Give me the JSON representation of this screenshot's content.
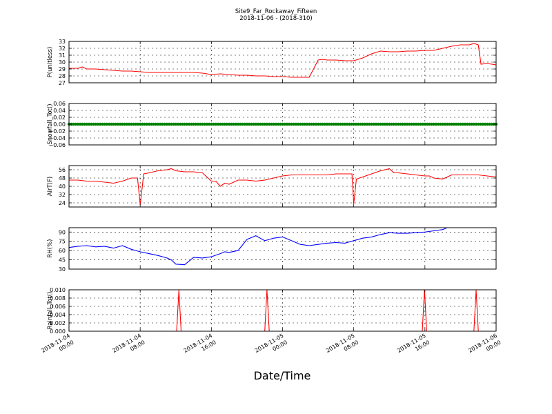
{
  "figure": {
    "title_line1": "Site9_Far_Rockaway_Fifteen",
    "title_line2": "2018-11-06 - (2018-310)",
    "xlabel": "Date/Time",
    "x_range": [
      "2018-11-04 00:00",
      "2018-11-06 00:00"
    ],
    "x_ticks": [
      {
        "value": "2018-11-04 00:00",
        "line1": "2018-11-04",
        "line2": "00:00"
      },
      {
        "value": "2018-11-04 08:00",
        "line1": "2018-11-04",
        "line2": "08:00"
      },
      {
        "value": "2018-11-04 16:00",
        "line1": "2018-11-04",
        "line2": "16:00"
      },
      {
        "value": "2018-11-05 00:00",
        "line1": "2018-11-05",
        "line2": "00:00"
      },
      {
        "value": "2018-11-05 08:00",
        "line1": "2018-11-05",
        "line2": "08:00"
      },
      {
        "value": "2018-11-05 16:00",
        "line1": "2018-11-05",
        "line2": "16:00"
      },
      {
        "value": "2018-11-06 00:00",
        "line1": "2018-11-06",
        "line2": "00:00"
      }
    ],
    "colors": {
      "red": "#ff0000",
      "green": "#008000",
      "blue": "#0000ff",
      "grid": "#000000"
    }
  },
  "chart_data": [
    {
      "type": "line",
      "ylabel": "P(unitless)",
      "ylim": [
        27,
        33
      ],
      "yticks": [
        27,
        28,
        29,
        30,
        31,
        32,
        33
      ],
      "ytick_labels": [
        "27",
        "28",
        "29",
        "30",
        "31",
        "32",
        "33"
      ],
      "color": "red",
      "grid": true,
      "series": [
        {
          "x_hours": [
            0,
            1,
            1.5,
            2,
            3,
            4,
            5,
            6,
            7,
            8,
            9,
            10,
            11,
            12,
            13,
            14,
            15,
            16,
            17,
            18,
            19,
            20,
            21,
            22,
            23,
            24,
            25,
            26,
            27,
            28,
            28.5,
            29,
            30,
            31,
            32,
            33,
            34,
            35,
            36,
            37,
            38,
            39,
            40,
            41,
            42,
            43,
            44,
            45,
            45.5,
            46,
            46.3,
            47,
            48
          ],
          "values": [
            29.1,
            29.1,
            29.3,
            29.0,
            29.0,
            28.9,
            28.8,
            28.7,
            28.7,
            28.6,
            28.5,
            28.5,
            28.5,
            28.5,
            28.5,
            28.5,
            28.4,
            28.2,
            28.3,
            28.2,
            28.1,
            28.1,
            28.0,
            28.0,
            27.9,
            27.9,
            27.8,
            27.8,
            27.8,
            30.3,
            30.4,
            30.3,
            30.3,
            30.2,
            30.2,
            30.6,
            31.2,
            31.6,
            31.5,
            31.5,
            31.6,
            31.6,
            31.7,
            31.7,
            32.0,
            32.3,
            32.5,
            32.5,
            32.7,
            32.5,
            29.7,
            29.8,
            29.6
          ]
        }
      ]
    },
    {
      "type": "scatter",
      "ylabel": "Snowfall_Tot()",
      "ylim": [
        -0.06,
        0.06
      ],
      "yticks": [
        -0.06,
        -0.04,
        -0.02,
        0.0,
        0.02,
        0.04,
        0.06
      ],
      "ytick_labels": [
        "−0.06",
        "−0.04",
        "−0.02",
        "0.00",
        "0.02",
        "0.04",
        "0.06"
      ],
      "color": "green",
      "grid": true,
      "series": [
        {
          "constant_value": 0.0,
          "x_range_hours": [
            0,
            48
          ]
        }
      ]
    },
    {
      "type": "line",
      "ylabel": "AirT(F)",
      "ylim": [
        20,
        60
      ],
      "yticks": [
        24,
        32,
        40,
        48,
        56
      ],
      "ytick_labels": [
        "24",
        "32",
        "40",
        "48",
        "56"
      ],
      "color": "red",
      "grid": true,
      "series": [
        {
          "x_hours": [
            0,
            1,
            2,
            3,
            4,
            5,
            6,
            7,
            7.7,
            8.0,
            8.4,
            9,
            10,
            11,
            11.5,
            12,
            13,
            14,
            15,
            16,
            16.5,
            17,
            17.5,
            18,
            19,
            20,
            21,
            22,
            23,
            24,
            25,
            26,
            27,
            28,
            29,
            30,
            31,
            31.8,
            32.0,
            32.3,
            33,
            34,
            35,
            35.5,
            36,
            36.5,
            37,
            38,
            39,
            40,
            40.5,
            41,
            42,
            43,
            44,
            45,
            46,
            47,
            48
          ],
          "values": [
            46,
            46,
            45,
            45,
            44,
            43,
            45,
            48,
            48,
            22,
            52,
            53,
            55,
            56,
            57,
            55,
            54,
            54,
            53,
            45,
            45,
            40,
            43,
            42,
            46,
            46,
            45,
            46,
            48,
            50,
            51,
            51,
            51,
            51,
            51,
            52,
            52,
            52,
            23,
            47,
            49,
            52,
            55,
            56,
            57,
            53,
            53,
            52,
            51,
            50,
            50,
            48,
            47,
            51,
            51,
            51,
            51,
            50,
            49
          ]
        }
      ]
    },
    {
      "type": "line",
      "ylabel": "RH(%)",
      "ylim": [
        30,
        97
      ],
      "yticks": [
        30,
        45,
        60,
        75,
        90
      ],
      "ytick_labels": [
        "30",
        "45",
        "60",
        "75",
        "90"
      ],
      "color": "blue",
      "grid": true,
      "series": [
        {
          "x_hours": [
            0,
            1,
            2,
            3,
            4,
            5,
            6,
            7,
            7.5,
            8,
            9,
            10,
            11,
            11.5,
            12,
            13,
            14,
            15,
            16,
            17,
            17.5,
            18,
            19,
            20,
            21,
            22,
            22.5,
            23,
            24,
            25,
            26,
            27,
            28,
            29,
            30,
            31,
            32,
            33,
            34,
            35,
            36,
            37,
            38,
            39,
            40,
            41,
            42,
            42.5
          ],
          "values": [
            65,
            67,
            68,
            66,
            67,
            64,
            68,
            62,
            60,
            58,
            55,
            52,
            48,
            45,
            38,
            37,
            49,
            48,
            50,
            55,
            58,
            57,
            60,
            78,
            84,
            76,
            78,
            80,
            82,
            76,
            70,
            68,
            70,
            72,
            73,
            72,
            76,
            80,
            82,
            86,
            89,
            88,
            88,
            89,
            90,
            92,
            94,
            97
          ]
        }
      ]
    },
    {
      "type": "line",
      "ylabel": "Rainfall_Tot()",
      "ylim": [
        0,
        0.01
      ],
      "yticks": [
        0.0,
        0.002,
        0.004,
        0.006,
        0.008,
        0.01
      ],
      "ytick_labels": [
        "0.000",
        "0.002",
        "0.004",
        "0.006",
        "0.008",
        "0.010"
      ],
      "color": "red",
      "grid": true,
      "series": [
        {
          "x_hours": [
            0,
            12.1,
            12.35,
            12.6,
            22.0,
            22.25,
            22.5,
            39.7,
            39.95,
            40.2,
            45.5,
            45.75,
            46.0,
            48
          ],
          "values": [
            0,
            0,
            0.01,
            0,
            0,
            0.01,
            0,
            0,
            0.01,
            0,
            0,
            0.01,
            0,
            0
          ]
        }
      ]
    }
  ]
}
